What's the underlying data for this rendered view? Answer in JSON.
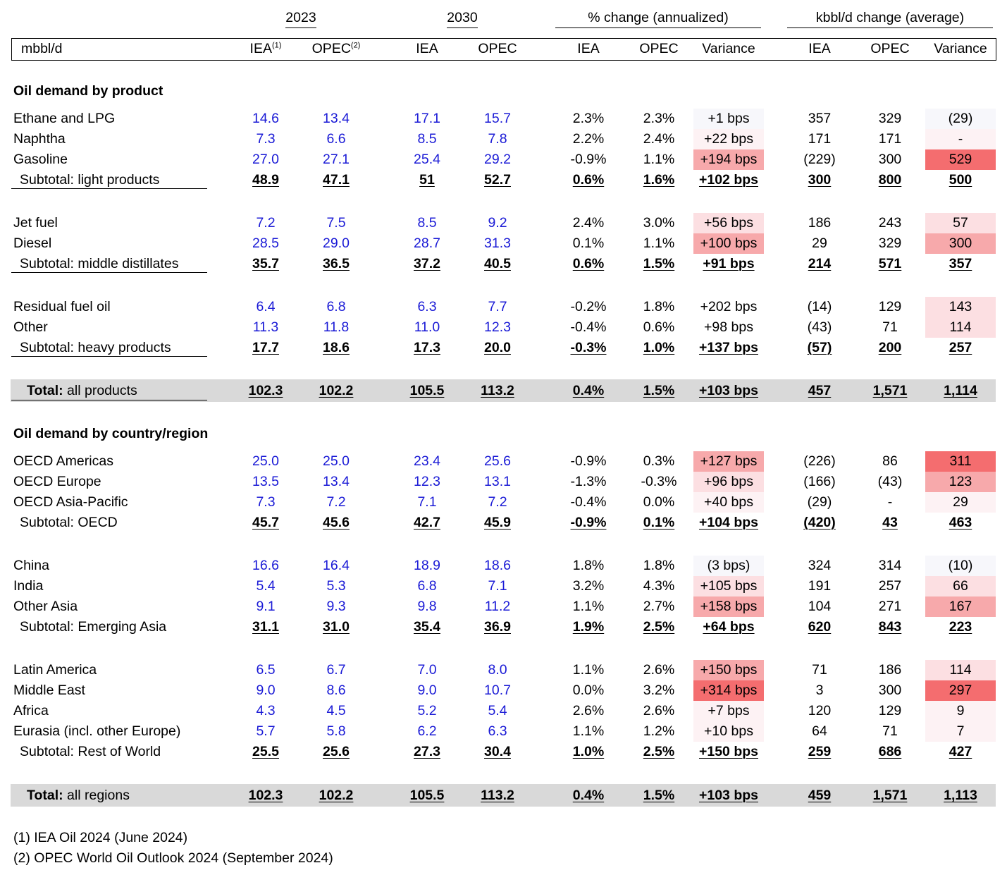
{
  "header": {
    "groups": {
      "y2023": "2023",
      "y2030": "2030",
      "pct": "% change (annualized)",
      "kbbl": "kbbl/d change (average)"
    },
    "unit": "mbbl/d",
    "iea": "IEA",
    "opec": "OPEC",
    "variance": "Variance",
    "sup1": "(1)",
    "sup2": "(2)"
  },
  "colors": {
    "heat_strong": "#f46d6f",
    "heat_mid": "#f7a9ab",
    "heat_light": "#fcdfe2",
    "heat_faint": "#fdf2f4",
    "heat_none": "#f7f7fb",
    "total_bar": "#d9d9d9",
    "input_blue": "#1a1ad6"
  },
  "sections": [
    {
      "title": "Oil demand by product",
      "groups": [
        {
          "rows": [
            {
              "label": "Ethane and LPG",
              "v": [
                "14.6",
                "13.4",
                "17.1",
                "15.7",
                "2.3%",
                "2.3%",
                "+1 bps",
                "357",
                "329",
                "(29)"
              ],
              "bps_heat": "heat_none",
              "var_heat": "heat_none"
            },
            {
              "label": "Naphtha",
              "v": [
                "7.3",
                "6.6",
                "8.5",
                "7.8",
                "2.2%",
                "2.4%",
                "+22 bps",
                "171",
                "171",
                "-"
              ],
              "bps_heat": "heat_faint",
              "var_heat": "heat_faint"
            },
            {
              "label": "Gasoline",
              "v": [
                "27.0",
                "27.1",
                "25.4",
                "29.2",
                "-0.9%",
                "1.1%",
                "+194 bps",
                "(229)",
                "300",
                "529"
              ],
              "bps_heat": "heat_mid",
              "var_heat": "heat_strong"
            }
          ],
          "subtotal": {
            "label": "Subtotal: light products",
            "v": [
              "48.9",
              "47.1",
              "51",
              "52.7",
              "0.6%",
              "1.6%",
              "+102 bps",
              "300",
              "800",
              "500"
            ]
          }
        },
        {
          "rows": [
            {
              "label": "Jet fuel",
              "v": [
                "7.2",
                "7.5",
                "8.5",
                "9.2",
                "2.4%",
                "3.0%",
                "+56 bps",
                "186",
                "243",
                "57"
              ],
              "bps_heat": "heat_light",
              "var_heat": "heat_light"
            },
            {
              "label": "Diesel",
              "v": [
                "28.5",
                "29.0",
                "28.7",
                "31.3",
                "0.1%",
                "1.1%",
                "+100 bps",
                "29",
                "329",
                "300"
              ],
              "bps_heat": "heat_mid",
              "var_heat": "heat_mid"
            }
          ],
          "subtotal": {
            "label": "Subtotal: middle distillates",
            "v": [
              "35.7",
              "36.5",
              "37.2",
              "40.5",
              "0.6%",
              "1.5%",
              "+91 bps",
              "214",
              "571",
              "357"
            ]
          }
        },
        {
          "rows": [
            {
              "label": "Residual fuel oil",
              "v": [
                "6.4",
                "6.8",
                "6.3",
                "7.7",
                "-0.2%",
                "1.8%",
                "+202 bps",
                "(14)",
                "129",
                "143"
              ],
              "bps_heat": "",
              "var_heat": "heat_light"
            },
            {
              "label": "Other",
              "v": [
                "11.3",
                "11.8",
                "11.0",
                "12.3",
                "-0.4%",
                "0.6%",
                "+98 bps",
                "(43)",
                "71",
                "114"
              ],
              "bps_heat": "",
              "var_heat": "heat_light"
            }
          ],
          "subtotal": {
            "label": "Subtotal: heavy products",
            "v": [
              "17.7",
              "18.6",
              "17.3",
              "20.0",
              "-0.3%",
              "1.0%",
              "+137 bps",
              "(57)",
              "200",
              "257"
            ]
          }
        }
      ],
      "total": {
        "bold": "Total:",
        "rest": " all products",
        "v": [
          "102.3",
          "102.2",
          "105.5",
          "113.2",
          "0.4%",
          "1.5%",
          "+103 bps",
          "457",
          "1,571",
          "1,114"
        ]
      }
    },
    {
      "title": "Oil demand by country/region",
      "groups": [
        {
          "rows": [
            {
              "label": "OECD Americas",
              "v": [
                "25.0",
                "25.0",
                "23.4",
                "25.6",
                "-0.9%",
                "0.3%",
                "+127 bps",
                "(226)",
                "86",
                "311"
              ],
              "bps_heat": "heat_mid",
              "var_heat": "heat_strong"
            },
            {
              "label": "OECD Europe",
              "v": [
                "13.5",
                "13.4",
                "12.3",
                "13.1",
                "-1.3%",
                "-0.3%",
                "+96 bps",
                "(166)",
                "(43)",
                "123"
              ],
              "bps_heat": "heat_light",
              "var_heat": "heat_mid"
            },
            {
              "label": "OECD Asia-Pacific",
              "v": [
                "7.3",
                "7.2",
                "7.1",
                "7.2",
                "-0.4%",
                "0.0%",
                "+40 bps",
                "(29)",
                "-",
                "29"
              ],
              "bps_heat": "heat_faint",
              "var_heat": "heat_faint"
            }
          ],
          "subtotal": {
            "label": "Subtotal: OECD",
            "v": [
              "45.7",
              "45.6",
              "42.7",
              "45.9",
              "-0.9%",
              "0.1%",
              "+104 bps",
              "(420)",
              "43",
              "463"
            ]
          }
        },
        {
          "rows": [
            {
              "label": "China",
              "v": [
                "16.6",
                "16.4",
                "18.9",
                "18.6",
                "1.8%",
                "1.8%",
                "(3 bps)",
                "324",
                "314",
                "(10)"
              ],
              "bps_heat": "heat_none",
              "var_heat": "heat_none"
            },
            {
              "label": "India",
              "v": [
                "5.4",
                "5.3",
                "6.8",
                "7.1",
                "3.2%",
                "4.3%",
                "+105 bps",
                "191",
                "257",
                "66"
              ],
              "bps_heat": "heat_light",
              "var_heat": "heat_light"
            },
            {
              "label": "Other Asia",
              "v": [
                "9.1",
                "9.3",
                "9.8",
                "11.2",
                "1.1%",
                "2.7%",
                "+158 bps",
                "104",
                "271",
                "167"
              ],
              "bps_heat": "heat_mid",
              "var_heat": "heat_mid"
            }
          ],
          "subtotal": {
            "label": "Subtotal: Emerging Asia",
            "v": [
              "31.1",
              "31.0",
              "35.4",
              "36.9",
              "1.9%",
              "2.5%",
              "+64 bps",
              "620",
              "843",
              "223"
            ]
          }
        },
        {
          "rows": [
            {
              "label": "Latin America",
              "v": [
                "6.5",
                "6.7",
                "7.0",
                "8.0",
                "1.1%",
                "2.6%",
                "+150 bps",
                "71",
                "186",
                "114"
              ],
              "bps_heat": "heat_mid",
              "var_heat": "heat_light"
            },
            {
              "label": "Middle East",
              "v": [
                "9.0",
                "8.6",
                "9.0",
                "10.7",
                "0.0%",
                "3.2%",
                "+314 bps",
                "3",
                "300",
                "297"
              ],
              "bps_heat": "heat_strong",
              "var_heat": "heat_strong"
            },
            {
              "label": "Africa",
              "v": [
                "4.3",
                "4.5",
                "5.2",
                "5.4",
                "2.6%",
                "2.6%",
                "+7 bps",
                "120",
                "129",
                "9"
              ],
              "bps_heat": "heat_faint",
              "var_heat": "heat_faint"
            },
            {
              "label": "Eurasia (incl. other Europe)",
              "v": [
                "5.7",
                "5.8",
                "6.2",
                "6.3",
                "1.1%",
                "1.2%",
                "+10 bps",
                "64",
                "71",
                "7"
              ],
              "bps_heat": "heat_faint",
              "var_heat": "heat_faint"
            }
          ],
          "subtotal": {
            "label": "Subtotal: Rest of World",
            "v": [
              "25.5",
              "25.6",
              "27.3",
              "30.4",
              "1.0%",
              "2.5%",
              "+150 bps",
              "259",
              "686",
              "427"
            ]
          }
        }
      ],
      "total": {
        "bold": "Total:",
        "rest": " all regions",
        "v": [
          "102.3",
          "102.2",
          "105.5",
          "113.2",
          "0.4%",
          "1.5%",
          "+103 bps",
          "459",
          "1,571",
          "1,113"
        ]
      }
    }
  ],
  "footnotes": [
    "(1) IEA Oil 2024 (June 2024)",
    "(2) OPEC World Oil Outlook 2024 (September 2024)"
  ]
}
